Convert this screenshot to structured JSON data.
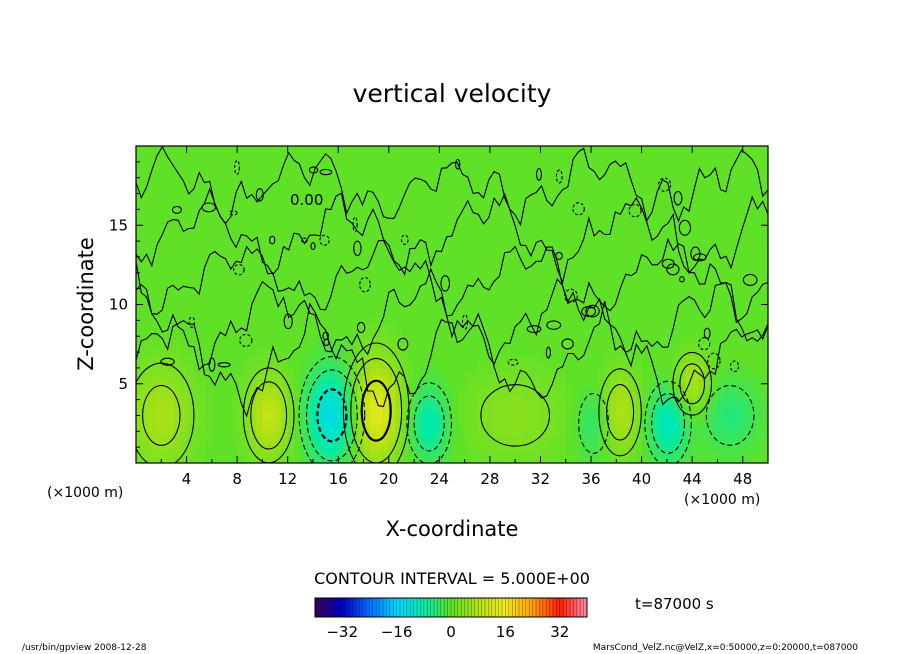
{
  "chart_data": {
    "type": "heatmap",
    "title": "vertical velocity",
    "xlabel": "X-coordinate",
    "ylabel": "Z-coordinate",
    "x_unit_left": "(×1000 m)",
    "x_unit_right": "(×1000 m)",
    "xlim": [
      0,
      50
    ],
    "ylim": [
      0,
      20
    ],
    "x_ticks": [
      4,
      8,
      12,
      16,
      20,
      24,
      28,
      32,
      36,
      40,
      44,
      48
    ],
    "y_ticks": [
      5,
      10,
      15
    ],
    "contour_label": "0.00",
    "contour_interval_text": "CONTOUR INTERVAL = 5.000E+00",
    "time_text": "t=87000 s",
    "colorbar": {
      "range": [
        -40,
        40
      ],
      "ticks": [
        -32,
        -16,
        0,
        16,
        32
      ],
      "tick_labels": [
        "−32",
        "−16",
        "0",
        "16",
        "32"
      ]
    },
    "footer_left": "/usr/bin/gpview  2008-12-28",
    "footer_right": "MarsCond_VelZ.nc@VelZ,x=0:50000,z=0:20000,t=087000",
    "features": [
      {
        "x": 2.0,
        "z": 3.0,
        "sx": 1.8,
        "sz": 2.3,
        "amp": 7
      },
      {
        "x": 10.5,
        "z": 3.0,
        "sx": 1.2,
        "sz": 1.8,
        "amp": 10
      },
      {
        "x": 15.5,
        "z": 3.0,
        "sx": 1.4,
        "sz": 2.0,
        "amp": -14
      },
      {
        "x": 19.0,
        "z": 3.3,
        "sx": 1.4,
        "sz": 2.3,
        "amp": 14
      },
      {
        "x": 23.2,
        "z": 2.5,
        "sx": 1.1,
        "sz": 1.6,
        "amp": -9
      },
      {
        "x": 30.0,
        "z": 3.0,
        "sx": 2.8,
        "sz": 2.0,
        "amp": 4
      },
      {
        "x": 36.2,
        "z": 2.5,
        "sx": 1.0,
        "sz": 1.6,
        "amp": -5
      },
      {
        "x": 38.3,
        "z": 3.2,
        "sx": 1.1,
        "sz": 1.8,
        "amp": 8
      },
      {
        "x": 42.1,
        "z": 2.5,
        "sx": 1.1,
        "sz": 1.6,
        "amp": -10
      },
      {
        "x": 44.0,
        "z": 5.0,
        "sx": 1.0,
        "sz": 1.3,
        "amp": 8
      },
      {
        "x": 47.0,
        "z": 3.0,
        "sx": 1.6,
        "sz": 1.6,
        "amp": -5
      }
    ]
  }
}
